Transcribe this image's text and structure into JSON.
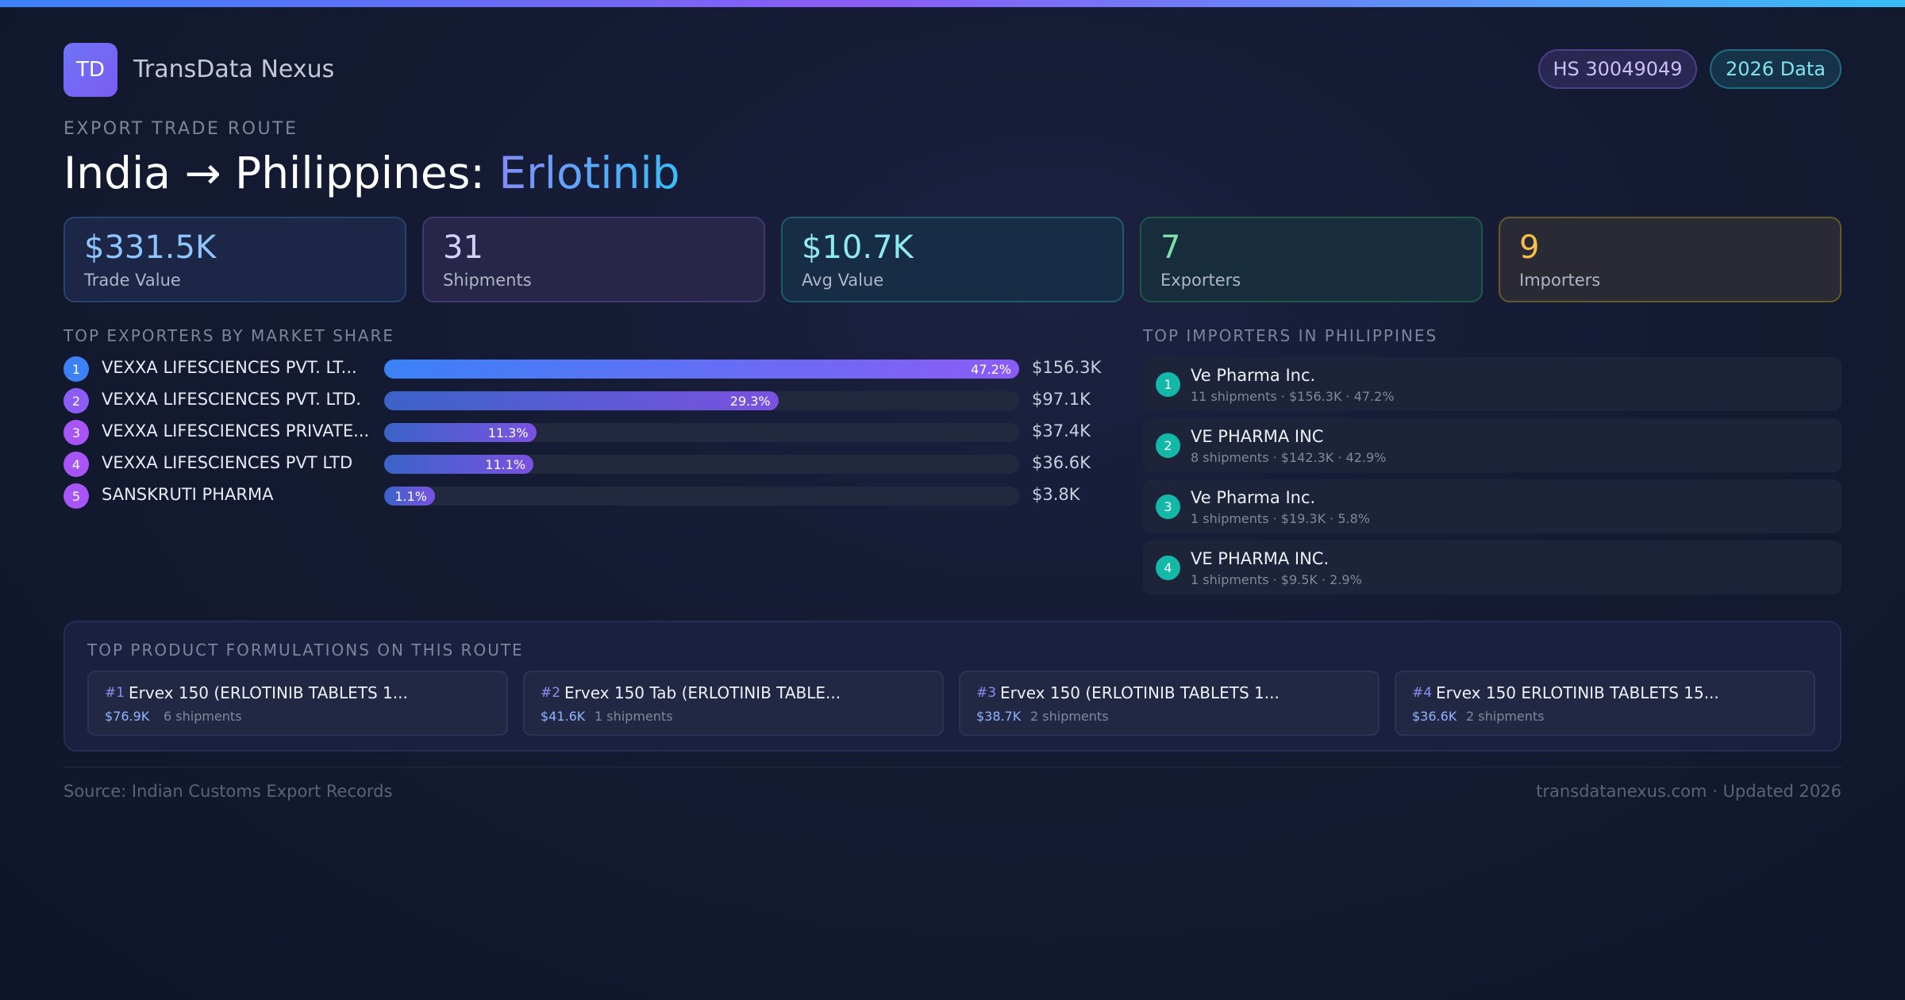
{
  "brand": {
    "logo_text": "TD",
    "name": "TransData Nexus"
  },
  "header_pills": {
    "hs_code": "HS 30049049",
    "data_year": "2026 Data"
  },
  "route": {
    "eyebrow": "EXPORT TRADE ROUTE",
    "title_prefix": "India → Philippines: ",
    "title_product": "Erlotinib"
  },
  "kpis": [
    {
      "value": "$331.5K",
      "label": "Trade Value"
    },
    {
      "value": "31",
      "label": "Shipments"
    },
    {
      "value": "$10.7K",
      "label": "Avg Value"
    },
    {
      "value": "7",
      "label": "Exporters"
    },
    {
      "value": "9",
      "label": "Importers"
    }
  ],
  "exporters": {
    "heading": "TOP EXPORTERS BY MARKET SHARE",
    "items": [
      {
        "rank": "1",
        "name": "VEXXA LIFESCIENCES PVT. LT...",
        "share": 47.2,
        "share_label": "47.2%",
        "value": "$156.3K"
      },
      {
        "rank": "2",
        "name": "VEXXA LIFESCIENCES PVT. LTD.",
        "share": 29.3,
        "share_label": "29.3%",
        "value": "$97.1K"
      },
      {
        "rank": "3",
        "name": "VEXXA LIFESCIENCES PRIVATE...",
        "share": 11.3,
        "share_label": "11.3%",
        "value": "$37.4K"
      },
      {
        "rank": "4",
        "name": "VEXXA LIFESCIENCES PVT LTD",
        "share": 11.1,
        "share_label": "11.1%",
        "value": "$36.6K"
      },
      {
        "rank": "5",
        "name": "SANSKRUTI PHARMA",
        "share": 1.1,
        "share_label": "1.1%",
        "value": "$3.8K"
      }
    ]
  },
  "importers": {
    "heading": "TOP IMPORTERS IN PHILIPPINES",
    "items": [
      {
        "rank": "1",
        "name": "Ve Pharma Inc.",
        "meta": "11 shipments · $156.3K · 47.2%"
      },
      {
        "rank": "2",
        "name": "VE PHARMA INC",
        "meta": "8 shipments · $142.3K · 42.9%"
      },
      {
        "rank": "3",
        "name": "Ve Pharma Inc.",
        "meta": "1 shipments · $19.3K · 5.8%"
      },
      {
        "rank": "4",
        "name": "VE PHARMA INC.",
        "meta": "1 shipments · $9.5K · 2.9%"
      }
    ]
  },
  "products": {
    "heading": "TOP PRODUCT FORMULATIONS ON THIS ROUTE",
    "items": [
      {
        "rank": "#1",
        "name": "Ervex 150 (ERLOTINIB TABLETS 1...",
        "value": "$76.9K",
        "shipments": "6 shipments"
      },
      {
        "rank": "#2",
        "name": "Ervex 150 Tab (ERLOTINIB TABLE...",
        "value": "$41.6K",
        "shipments": "1 shipments"
      },
      {
        "rank": "#3",
        "name": "Ervex 150 (ERLOTINIB TABLETS 1...",
        "value": "$38.7K",
        "shipments": "2 shipments"
      },
      {
        "rank": "#4",
        "name": "Ervex 150 ERLOTINIB TABLETS 15...",
        "value": "$36.6K",
        "shipments": "2 shipments"
      }
    ]
  },
  "footer": {
    "source": "Source: Indian Customs Export Records",
    "updated": "transdatanexus.com · Updated 2026"
  },
  "colors": {
    "exporter_rank": [
      "#3b82f6",
      "#8b5cf6",
      "#a855f7",
      "#a855f7",
      "#a855f7"
    ],
    "importer_rank": "#14b8a6"
  }
}
